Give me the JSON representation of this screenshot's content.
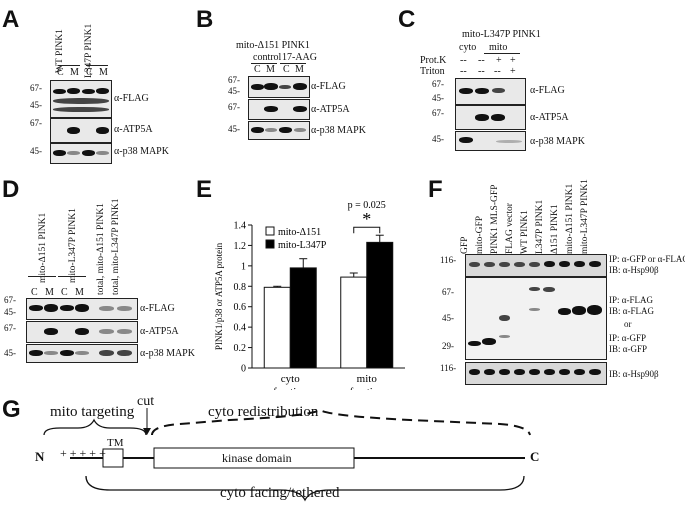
{
  "panels": {
    "A": {
      "letter": "A",
      "lanes_header": [
        "WT PINK1",
        "L347P PINK1"
      ],
      "fractions": [
        "C",
        "M",
        "C",
        "M"
      ],
      "mw": [
        "67-",
        "45-",
        "67-",
        "45-"
      ],
      "blots": [
        "α-FLAG",
        "α-ATP5A",
        "α-p38 MAPK"
      ]
    },
    "B": {
      "letter": "B",
      "title": "mito-Δ151 PINK1",
      "groups": [
        "control",
        "17-AAG"
      ],
      "fractions": [
        "C",
        "M",
        "C",
        "M"
      ],
      "mw": [
        "67-",
        "45-",
        "67-",
        "45-"
      ],
      "blots": [
        "α-FLAG",
        "α-ATP5A",
        "α-p38 MAPK"
      ]
    },
    "C": {
      "letter": "C",
      "title": "mito-L347P PINK1",
      "groups": [
        "cyto",
        "mito"
      ],
      "rows": [
        {
          "label": "Prot.K",
          "values": [
            "--",
            "--",
            "+",
            "+"
          ]
        },
        {
          "label": "Triton",
          "values": [
            "--",
            "--",
            "--",
            "+"
          ]
        }
      ],
      "mw": [
        "67-",
        "45-",
        "67-",
        "45-"
      ],
      "blots": [
        "α-FLAG",
        "α-ATP5A",
        "α-p38 MAPK"
      ]
    },
    "D": {
      "letter": "D",
      "lanes_header": [
        "mito-Δ151 PINK1",
        "mito-L347P PINK1",
        "total, mito-Δ151 PINK1",
        "total, mito-L347P PINK1"
      ],
      "fractions": [
        "C",
        "M",
        "C",
        "M"
      ],
      "mw": [
        "67-",
        "45-",
        "67-",
        "45-"
      ],
      "blots": [
        "α-FLAG",
        "α-ATP5A",
        "α-p38 MAPK"
      ]
    },
    "E": {
      "letter": "E",
      "pvalue": "p = 0.025",
      "star": "*",
      "ylabel": "PINK1/p38 or ATP5A protein",
      "yticks": [
        "0",
        "0.2",
        "0.4",
        "0.6",
        "0.8",
        "1",
        "1.2",
        "1.4"
      ]
    },
    "F": {
      "letter": "F",
      "lanes": [
        "GFP",
        "mito-GFP",
        "PINK1 MLS-GFP",
        "FLAG vector",
        "WT PINK1",
        "L347P PINK1",
        "Δ151 PINK1",
        "mito-Δ151 PINK1",
        "mito-L347P PINK1"
      ],
      "mw": [
        "116-",
        "67-",
        "45-",
        "29-",
        "116-"
      ],
      "labels1": [
        "IP: α-GFP or α-FLAG",
        "IB: α-Hsp90β"
      ],
      "labels2": [
        "IP: α-FLAG",
        "IB: α-FLAG",
        "or",
        "IP: α-GFP",
        "IB: α-GFP"
      ],
      "labels3": [
        "IB: α-Hsp90β"
      ]
    },
    "G": {
      "letter": "G",
      "mito_targeting": "mito targeting",
      "cut": "cut",
      "cyto_redistribution": "cyto redistribution",
      "plus": "+ + + + +",
      "tm": "TM",
      "kinase": "kinase domain",
      "n": "N",
      "c": "C",
      "cyto_facing": "cyto facing/tethered"
    }
  },
  "chart_data": {
    "type": "bar",
    "categories": [
      "cyto\nfraction",
      "mito\nfraction"
    ],
    "series": [
      {
        "name": "mito-Δ151",
        "values": [
          0.79,
          0.89
        ],
        "errors": [
          0.01,
          0.04
        ],
        "color": "#ffffff"
      },
      {
        "name": "mito-L347P",
        "values": [
          0.98,
          1.23
        ],
        "errors": [
          0.09,
          0.07
        ],
        "color": "#000000"
      }
    ],
    "ylabel": "PINK1/p38 or ATP5A protein",
    "ylim": [
      0,
      1.4
    ],
    "annotation": {
      "text": "p = 0.025",
      "star": "*"
    },
    "legend": "top-left"
  }
}
